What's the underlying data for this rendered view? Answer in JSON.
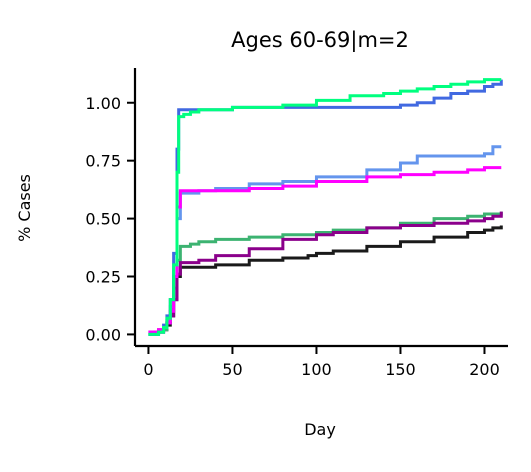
{
  "chart_data": {
    "type": "line",
    "title": "Ages 60-69|m=2",
    "xlabel": "Day",
    "ylabel": "% Cases",
    "xlim": [
      -8,
      214
    ],
    "ylim": [
      -0.05,
      1.15
    ],
    "xticks": [
      0,
      50,
      100,
      150,
      200
    ],
    "xtick_labels": [
      "0",
      "50",
      "100",
      "150",
      "200"
    ],
    "yticks": [
      0.0,
      0.25,
      0.5,
      0.75,
      1.0
    ],
    "ytick_labels": [
      "0.00",
      "0.25",
      "0.50",
      "0.75",
      "1.00"
    ],
    "grid": false,
    "legend": "none",
    "series": [
      {
        "color": "#1a1a1a",
        "x": [
          0,
          3,
          6,
          9,
          11,
          13,
          15,
          17,
          19,
          21,
          25,
          40,
          60,
          80,
          95,
          100,
          110,
          130,
          150,
          170,
          190,
          200,
          205,
          210
        ],
        "y": [
          0.0,
          0.0,
          0.01,
          0.02,
          0.04,
          0.08,
          0.15,
          0.25,
          0.29,
          0.29,
          0.29,
          0.3,
          0.32,
          0.33,
          0.34,
          0.35,
          0.36,
          0.38,
          0.4,
          0.42,
          0.44,
          0.45,
          0.46,
          0.47
        ]
      },
      {
        "color": "#3cb371",
        "x": [
          0,
          3,
          6,
          9,
          11,
          13,
          15,
          17,
          19,
          21,
          25,
          30,
          40,
          60,
          80,
          100,
          110,
          130,
          150,
          170,
          190,
          200,
          205,
          210
        ],
        "y": [
          0.0,
          0.0,
          0.01,
          0.02,
          0.05,
          0.1,
          0.2,
          0.32,
          0.38,
          0.38,
          0.39,
          0.4,
          0.41,
          0.42,
          0.43,
          0.44,
          0.45,
          0.46,
          0.48,
          0.5,
          0.51,
          0.52,
          0.52,
          0.53
        ]
      },
      {
        "color": "#8b008b",
        "x": [
          0,
          3,
          6,
          9,
          11,
          13,
          15,
          17,
          19,
          21,
          25,
          30,
          40,
          60,
          80,
          100,
          110,
          130,
          150,
          170,
          190,
          200,
          205,
          210
        ],
        "y": [
          0.01,
          0.01,
          0.02,
          0.03,
          0.05,
          0.08,
          0.15,
          0.26,
          0.31,
          0.31,
          0.31,
          0.32,
          0.34,
          0.37,
          0.41,
          0.43,
          0.44,
          0.46,
          0.47,
          0.48,
          0.49,
          0.5,
          0.51,
          0.53
        ]
      },
      {
        "color": "#6495ed",
        "x": [
          0,
          3,
          6,
          9,
          11,
          13,
          15,
          17,
          19,
          21,
          25,
          30,
          40,
          60,
          80,
          100,
          130,
          150,
          160,
          170,
          180,
          195,
          200,
          205,
          210
        ],
        "y": [
          0.0,
          0.0,
          0.01,
          0.03,
          0.06,
          0.12,
          0.25,
          0.5,
          0.61,
          0.61,
          0.61,
          0.62,
          0.63,
          0.65,
          0.66,
          0.68,
          0.71,
          0.74,
          0.77,
          0.77,
          0.77,
          0.77,
          0.78,
          0.81,
          0.81
        ]
      },
      {
        "color": "#ff00ff",
        "x": [
          0,
          3,
          6,
          9,
          11,
          13,
          15,
          17,
          19,
          21,
          25,
          30,
          40,
          60,
          80,
          100,
          130,
          150,
          170,
          190,
          200,
          210
        ],
        "y": [
          0.01,
          0.01,
          0.02,
          0.03,
          0.05,
          0.1,
          0.25,
          0.55,
          0.62,
          0.62,
          0.62,
          0.62,
          0.62,
          0.63,
          0.64,
          0.66,
          0.68,
          0.69,
          0.7,
          0.71,
          0.72,
          0.72
        ]
      },
      {
        "color": "#4169e1",
        "x": [
          0,
          3,
          6,
          9,
          11,
          13,
          15,
          17,
          18,
          19,
          21,
          25,
          30,
          50,
          100,
          120,
          140,
          150,
          160,
          170,
          180,
          190,
          200,
          205,
          210
        ],
        "y": [
          0.0,
          0.0,
          0.01,
          0.04,
          0.08,
          0.15,
          0.35,
          0.8,
          0.97,
          0.97,
          0.97,
          0.97,
          0.97,
          0.98,
          0.98,
          0.98,
          0.98,
          0.99,
          1.0,
          1.02,
          1.04,
          1.05,
          1.07,
          1.08,
          1.1
        ]
      },
      {
        "color": "#00ff7f",
        "x": [
          0,
          3,
          6,
          9,
          11,
          13,
          15,
          17,
          18,
          19,
          21,
          25,
          30,
          50,
          80,
          100,
          120,
          140,
          150,
          160,
          170,
          180,
          190,
          200,
          205,
          210
        ],
        "y": [
          0.0,
          0.0,
          0.01,
          0.03,
          0.07,
          0.15,
          0.3,
          0.7,
          0.94,
          0.94,
          0.95,
          0.96,
          0.97,
          0.98,
          0.99,
          1.01,
          1.03,
          1.04,
          1.05,
          1.06,
          1.07,
          1.08,
          1.09,
          1.1,
          1.1,
          1.1
        ]
      }
    ]
  }
}
